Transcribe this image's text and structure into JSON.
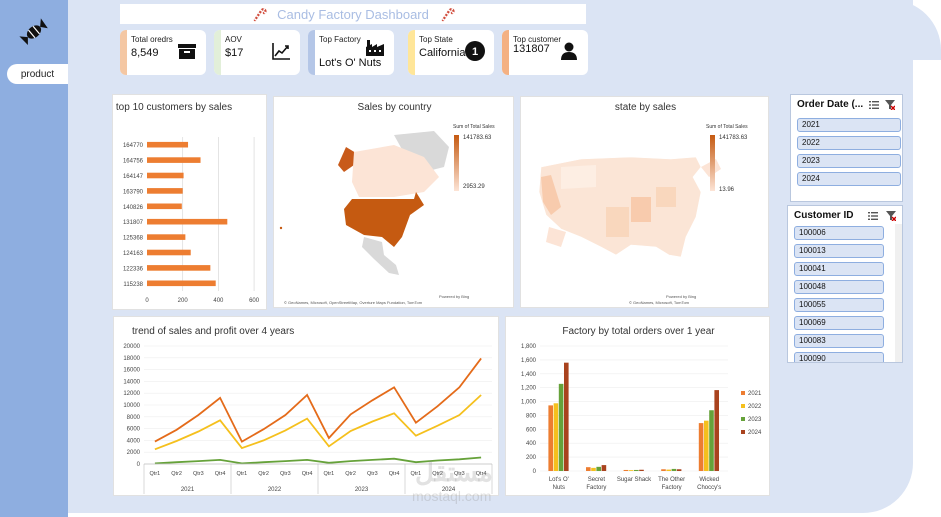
{
  "header": {
    "title": "Candy Factory Dashboard"
  },
  "sidebar": {
    "product_tab": "product"
  },
  "kpis": [
    {
      "label": "Total oredrs",
      "value": "8,549",
      "color": "#f4c7a3",
      "icon": "archive-box-icon"
    },
    {
      "label": "AOV",
      "value": "$17",
      "color": "#e2efd9",
      "icon": "trend-chart-icon"
    },
    {
      "label": "Top Factory",
      "value": "Lot's O' Nuts",
      "color": "#b4c6e7",
      "icon": "factory-icon"
    },
    {
      "label": "Top State",
      "value": "California",
      "color": "#ffe699",
      "icon": "number-one-icon"
    },
    {
      "label": "Top customer",
      "value": "131807",
      "color": "#f4b183",
      "icon": "person-icon"
    }
  ],
  "top_customers": {
    "title": "top 10 customers by sales",
    "chart_data": {
      "type": "bar",
      "categories": [
        "164770",
        "164756",
        "164147",
        "163790",
        "140826",
        "131807",
        "125368",
        "124163",
        "122336",
        "115238"
      ],
      "values": [
        230,
        300,
        205,
        200,
        195,
        450,
        215,
        245,
        355,
        385
      ],
      "xlim": [
        0,
        650
      ],
      "xticks": [
        "0",
        "200",
        "400",
        "600"
      ],
      "color": "#ed7d31"
    }
  },
  "sales_country": {
    "title": "Sales by country",
    "legend_title": "Sum of Total Sales",
    "legend_max": "141783.63",
    "legend_min": "2953.29",
    "credit_top": "Powered by Bing",
    "credit": "© GeoNames, Microsoft, OpenStreetMap, Overture Maps Fundation, TomTom"
  },
  "state_sales": {
    "title": "state by sales",
    "legend_title": "Sum of Total Sales",
    "legend_max": "141783.63",
    "legend_min": "13.96",
    "credit_top": "Powered by Bing",
    "credit": "© GeoNames, Microsoft, TomTom"
  },
  "trend": {
    "title": "trend of sales and profit over 4 years",
    "chart_data": {
      "type": "line",
      "x": [
        "Qtr1",
        "Qtr2",
        "Qtr3",
        "Qtr4",
        "Qtr1",
        "Qtr2",
        "Qtr3",
        "Qtr4",
        "Qtr1",
        "Qtr2",
        "Qtr3",
        "Qtr4",
        "Qtr1",
        "Qtr2",
        "Qtr3",
        "Qtr4"
      ],
      "years": [
        "2021",
        "2022",
        "2023",
        "2024"
      ],
      "series": [
        {
          "values": [
            3800,
            5800,
            8300,
            11200,
            3800,
            5900,
            8300,
            11700,
            4400,
            8400,
            10800,
            13000,
            7000,
            9800,
            13000,
            17900
          ],
          "color": "#e46b1a"
        },
        {
          "values": [
            2500,
            3900,
            5500,
            7400,
            2700,
            4000,
            5700,
            7700,
            3000,
            5600,
            7200,
            8600,
            4800,
            6500,
            8300,
            11700
          ],
          "color": "#f5c01d"
        },
        {
          "values": [
            100,
            300,
            500,
            700,
            100,
            300,
            500,
            700,
            200,
            500,
            700,
            900,
            300,
            600,
            800,
            1100
          ],
          "color": "#66a23a"
        }
      ],
      "ylim": [
        0,
        20000
      ],
      "yticks": [
        "0",
        "2000",
        "4000",
        "6000",
        "8000",
        "10000",
        "12000",
        "14000",
        "16000",
        "18000",
        "20000"
      ]
    }
  },
  "factory": {
    "title": "Factory by total orders over 1 year",
    "chart_data": {
      "type": "bar",
      "categories": [
        "Lot's O' Nuts",
        "Secret Factory",
        "Sugar Shack",
        "The Other Factory",
        "Wicked Choccy's"
      ],
      "series": [
        {
          "name": "2021",
          "values": [
            945,
            55,
            15,
            25,
            690
          ],
          "color": "#ed7d31"
        },
        {
          "name": "2022",
          "values": [
            975,
            45,
            12,
            20,
            725
          ],
          "color": "#f5c01d"
        },
        {
          "name": "2023",
          "values": [
            1255,
            60,
            15,
            30,
            875
          ],
          "color": "#66a23a"
        },
        {
          "name": "2024",
          "values": [
            1560,
            85,
            18,
            25,
            1165
          ],
          "color": "#a9431e"
        }
      ],
      "ylim": [
        0,
        1800
      ],
      "yticks": [
        "0",
        "200",
        "400",
        "600",
        "800",
        "1,000",
        "1,200",
        "1,400",
        "1,600",
        "1,800"
      ]
    }
  },
  "slicers": {
    "order_date": {
      "title": "Order Date (...",
      "items": [
        "2021",
        "2022",
        "2023",
        "2024"
      ]
    },
    "customer_id": {
      "title": "Customer ID",
      "items": [
        "100006",
        "100013",
        "100041",
        "100048",
        "100055",
        "100069",
        "100083",
        "100090"
      ]
    }
  },
  "colors": {
    "sidebar": "#8eaee0",
    "panel": "#dbe4f4",
    "accent": "#ed7d31"
  },
  "watermark": {
    "main": "مستقل",
    "sub": "mostaql.com"
  }
}
